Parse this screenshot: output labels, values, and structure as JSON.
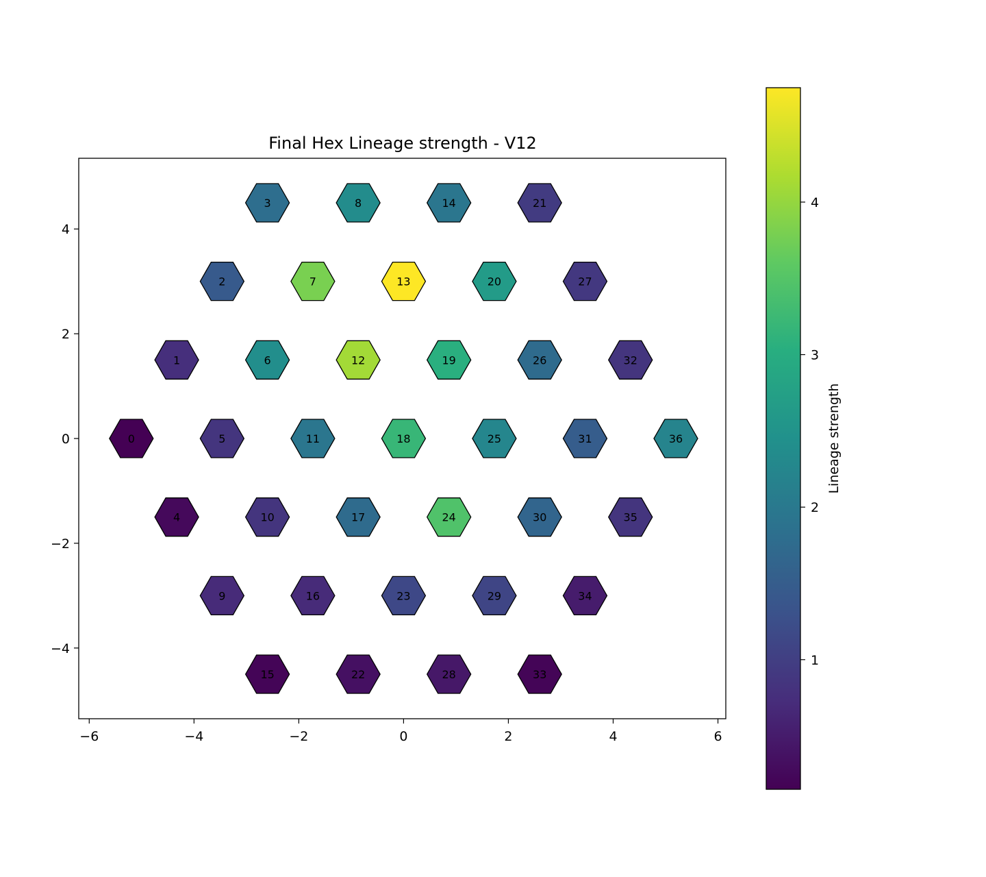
{
  "chart_data": {
    "type": "heatmap",
    "subtype": "hexagonal-grid",
    "title": "Final Hex Lineage strength - V12",
    "xlabel": "",
    "ylabel": "",
    "xlim": [
      -6.2,
      6.15
    ],
    "ylim": [
      -5.35,
      5.35
    ],
    "x_ticks": [
      -6,
      -4,
      -2,
      0,
      2,
      4,
      6
    ],
    "y_ticks": [
      -4,
      -2,
      0,
      2,
      4
    ],
    "colormap": "viridis",
    "colorbar": {
      "label": "Lineage strength",
      "range": [
        0.15,
        4.75
      ],
      "ticks": [
        1,
        2,
        3,
        4
      ]
    },
    "grid": false,
    "cells": [
      {
        "id": 0,
        "x": -5.196,
        "y": 0.0,
        "value": 0.15
      },
      {
        "id": 1,
        "x": -4.33,
        "y": 1.5,
        "value": 0.75
      },
      {
        "id": 2,
        "x": -3.464,
        "y": 3.0,
        "value": 1.45
      },
      {
        "id": 3,
        "x": -2.598,
        "y": 4.5,
        "value": 1.8
      },
      {
        "id": 4,
        "x": -4.33,
        "y": -1.5,
        "value": 0.25
      },
      {
        "id": 5,
        "x": -3.464,
        "y": 0.0,
        "value": 0.85
      },
      {
        "id": 6,
        "x": -2.598,
        "y": 1.5,
        "value": 2.4
      },
      {
        "id": 7,
        "x": -1.732,
        "y": 3.0,
        "value": 3.8
      },
      {
        "id": 8,
        "x": -0.866,
        "y": 4.5,
        "value": 2.35
      },
      {
        "id": 9,
        "x": -3.464,
        "y": -3.0,
        "value": 0.7
      },
      {
        "id": 10,
        "x": -2.598,
        "y": -1.5,
        "value": 0.85
      },
      {
        "id": 11,
        "x": -1.732,
        "y": 0.0,
        "value": 1.95
      },
      {
        "id": 12,
        "x": -0.866,
        "y": 1.5,
        "value": 4.1
      },
      {
        "id": 13,
        "x": 0.0,
        "y": 3.0,
        "value": 4.75
      },
      {
        "id": 14,
        "x": 0.866,
        "y": 4.5,
        "value": 1.95
      },
      {
        "id": 15,
        "x": -2.598,
        "y": -4.5,
        "value": 0.2
      },
      {
        "id": 16,
        "x": -1.732,
        "y": -3.0,
        "value": 0.7
      },
      {
        "id": 17,
        "x": -0.866,
        "y": -1.5,
        "value": 1.75
      },
      {
        "id": 18,
        "x": 0.0,
        "y": 0.0,
        "value": 3.2
      },
      {
        "id": 19,
        "x": 0.866,
        "y": 1.5,
        "value": 3.05
      },
      {
        "id": 20,
        "x": 1.732,
        "y": 3.0,
        "value": 2.65
      },
      {
        "id": 21,
        "x": 2.598,
        "y": 4.5,
        "value": 0.95
      },
      {
        "id": 22,
        "x": -0.866,
        "y": -4.5,
        "value": 0.35
      },
      {
        "id": 23,
        "x": 0.0,
        "y": -3.0,
        "value": 1.15
      },
      {
        "id": 24,
        "x": 0.866,
        "y": -1.5,
        "value": 3.45
      },
      {
        "id": 25,
        "x": 1.732,
        "y": 0.0,
        "value": 2.25
      },
      {
        "id": 26,
        "x": 2.598,
        "y": 1.5,
        "value": 1.75
      },
      {
        "id": 27,
        "x": 3.464,
        "y": 3.0,
        "value": 0.9
      },
      {
        "id": 28,
        "x": 0.866,
        "y": -4.5,
        "value": 0.45
      },
      {
        "id": 29,
        "x": 1.732,
        "y": -3.0,
        "value": 1.1
      },
      {
        "id": 30,
        "x": 2.598,
        "y": -1.5,
        "value": 1.65
      },
      {
        "id": 31,
        "x": 3.464,
        "y": 0.0,
        "value": 1.5
      },
      {
        "id": 32,
        "x": 4.33,
        "y": 1.5,
        "value": 0.85
      },
      {
        "id": 33,
        "x": 2.598,
        "y": -4.5,
        "value": 0.2
      },
      {
        "id": 34,
        "x": 3.464,
        "y": -3.0,
        "value": 0.5
      },
      {
        "id": 35,
        "x": 4.33,
        "y": -1.5,
        "value": 0.85
      },
      {
        "id": 36,
        "x": 5.196,
        "y": 0.0,
        "value": 2.2
      }
    ]
  }
}
